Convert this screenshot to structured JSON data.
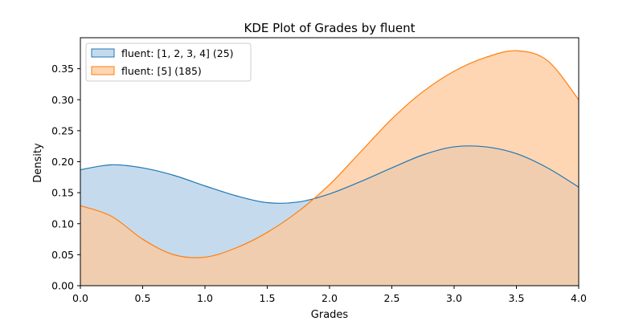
{
  "chart_data": {
    "type": "area",
    "title": "KDE Plot of Grades by fluent",
    "xlabel": "Grades",
    "ylabel": "Density",
    "xlim": [
      0,
      4
    ],
    "ylim": [
      0,
      0.4
    ],
    "xticks": [
      "0.0",
      "0.5",
      "1.0",
      "1.5",
      "2.0",
      "2.5",
      "3.0",
      "3.5",
      "4.0"
    ],
    "yticks": [
      "0.00",
      "0.05",
      "0.10",
      "0.15",
      "0.20",
      "0.25",
      "0.30",
      "0.35"
    ],
    "grid": false,
    "legend_position": "top-left",
    "series": [
      {
        "name": "fluent: [1, 2, 3, 4] (25)",
        "color": "#1f77b4",
        "fill": "#a6c8e4",
        "x": [
          0.0,
          0.25,
          0.5,
          0.75,
          1.0,
          1.25,
          1.5,
          1.75,
          2.0,
          2.25,
          2.5,
          2.75,
          3.0,
          3.25,
          3.5,
          3.75,
          4.0
        ],
        "y": [
          0.187,
          0.195,
          0.19,
          0.178,
          0.161,
          0.145,
          0.134,
          0.135,
          0.148,
          0.168,
          0.19,
          0.211,
          0.224,
          0.224,
          0.213,
          0.19,
          0.159
        ]
      },
      {
        "name": "fluent: [5] (185)",
        "color": "#ff7f0e",
        "fill": "#ffc89a",
        "x": [
          0.0,
          0.25,
          0.5,
          0.75,
          1.0,
          1.25,
          1.5,
          1.75,
          2.0,
          2.25,
          2.5,
          2.75,
          3.0,
          3.25,
          3.5,
          3.75,
          4.0
        ],
        "y": [
          0.129,
          0.112,
          0.075,
          0.05,
          0.046,
          0.061,
          0.086,
          0.12,
          0.163,
          0.216,
          0.269,
          0.313,
          0.346,
          0.368,
          0.379,
          0.363,
          0.3
        ]
      }
    ]
  }
}
